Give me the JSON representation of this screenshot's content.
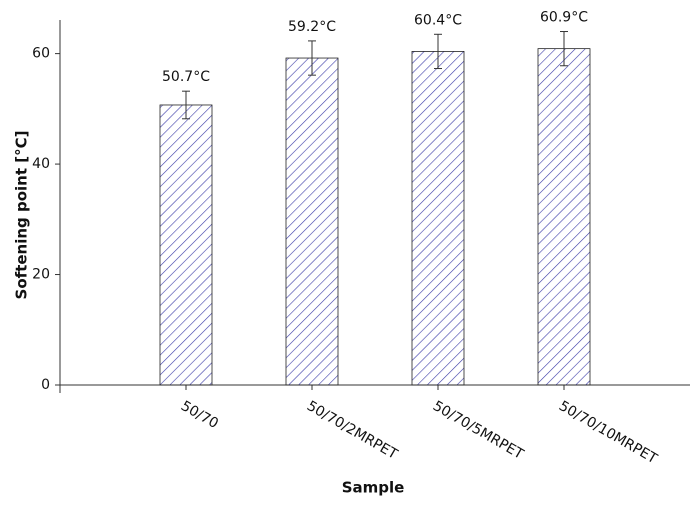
{
  "chart_data": {
    "type": "bar",
    "x_label": "Sample",
    "y_label": "Softening point [°C]",
    "categories": [
      "50/70",
      "50/70/2MRPET",
      "50/70/5MRPET",
      "50/70/10MRPET"
    ],
    "values": [
      50.7,
      59.2,
      60.4,
      60.9
    ],
    "errors": [
      2.5,
      3.1,
      3.1,
      3.1
    ],
    "value_labels": [
      "50.7°C",
      "59.2°C",
      "60.4°C",
      "60.9°C"
    ],
    "color": "#3c3ca8",
    "ylim": [
      0,
      65
    ],
    "yticks": [
      0,
      20,
      40,
      60
    ],
    "grid": false
  }
}
